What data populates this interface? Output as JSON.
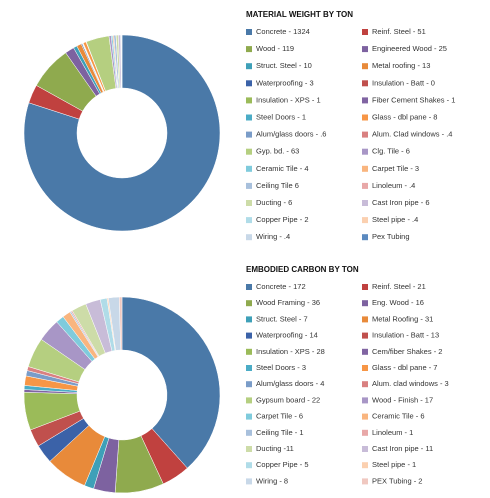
{
  "chart_data": [
    {
      "type": "donut",
      "title": "MATERIAL WEIGHT  BY TON",
      "categories": [
        "Concrete - 1324",
        "Reinf. Steel - 51",
        "Wood - 119",
        "Engineered Wood - 25",
        "Struct. Steel - 10",
        "Metal roofing - 13",
        "Waterproofing - 3",
        "Insulation - Batt - 0",
        "Insulation - XPS - 1",
        "Fiber Cement Shakes - 1",
        "Steel Doors - 1",
        "Glass - dbl pane - 8",
        "Alum/glass doors - .6",
        "Alum. Clad windows - .4",
        "Gyp. bd. - 63",
        "Clg. Tile - 6",
        "Ceramic Tile - 4",
        "Carpet Tile - 3",
        "Ceiling Tile 6",
        "Linoleum - .4",
        "Ducting - 6",
        "Cast Iron pipe - 6",
        "Copper Pipe - 2",
        "Steel pipe - .4",
        "Wiring - .4",
        "Pex Tubing"
      ],
      "values": [
        1324,
        51,
        119,
        25,
        10,
        13,
        3,
        0,
        1,
        1,
        1,
        8,
        0.6,
        0.4,
        63,
        6,
        4,
        3,
        6,
        0.4,
        6,
        6,
        2,
        0.4,
        0.4,
        1
      ],
      "colors": [
        "#4a79a8",
        "#c0413f",
        "#8faa4e",
        "#7d62a0",
        "#3ea0b8",
        "#e88a3a",
        "#3b62a8",
        "#c0504d",
        "#9bbb59",
        "#8064a2",
        "#4bacc6",
        "#f79646",
        "#7a9cc8",
        "#d98080",
        "#b5cf80",
        "#a896c6",
        "#7fcbdc",
        "#f9b57f",
        "#a8c0dc",
        "#e8a8a8",
        "#cddca8",
        "#c8bcd8",
        "#b0dce8",
        "#fbd0b0",
        "#c8d8e8",
        "#5b8ac0"
      ]
    },
    {
      "type": "donut",
      "title": "EMBODIED CARBON BY TON",
      "categories": [
        "Concrete - 172",
        "Reinf. Steel - 21",
        "Wood Framing - 36",
        "Eng. Wood - 16",
        "Struct. Steel - 7",
        "Metal Roofing - 31",
        "Waterproofing - 14",
        "Insulation - Batt - 13",
        "Insulation - XPS - 28",
        "Cem/fiber Shakes - 2",
        "Steel Doors - 3",
        "Glass - dbl pane - 7",
        "Alum/glass doors - 4",
        "Alum. clad windows - 3",
        "Gypsum board - 22",
        "Wood - Finish - 17",
        "Carpet Tile - 6",
        "Ceramic Tile - 6",
        "Ceiling Tile - 1",
        "Linoleum - 1",
        "Ducting -11",
        "Cast Iron pipe - 11",
        "Copper Pipe - 5",
        "Steel pipe - 1",
        "Wiring - 8",
        "PEX Tubing - 2"
      ],
      "values": [
        172,
        21,
        36,
        16,
        7,
        31,
        14,
        13,
        28,
        2,
        3,
        7,
        4,
        3,
        22,
        17,
        6,
        6,
        1,
        1,
        11,
        11,
        5,
        1,
        8,
        2
      ],
      "colors": [
        "#4a79a8",
        "#c0413f",
        "#8faa4e",
        "#7d62a0",
        "#3ea0b8",
        "#e88a3a",
        "#3b62a8",
        "#c0504d",
        "#9bbb59",
        "#8064a2",
        "#4bacc6",
        "#f79646",
        "#7a9cc8",
        "#d98080",
        "#b5cf80",
        "#a896c6",
        "#7fcbdc",
        "#f9b57f",
        "#a8c0dc",
        "#e8a8a8",
        "#cddca8",
        "#c8bcd8",
        "#b0dce8",
        "#fbd0b0",
        "#c8d8e8",
        "#f0c8c0"
      ]
    }
  ]
}
